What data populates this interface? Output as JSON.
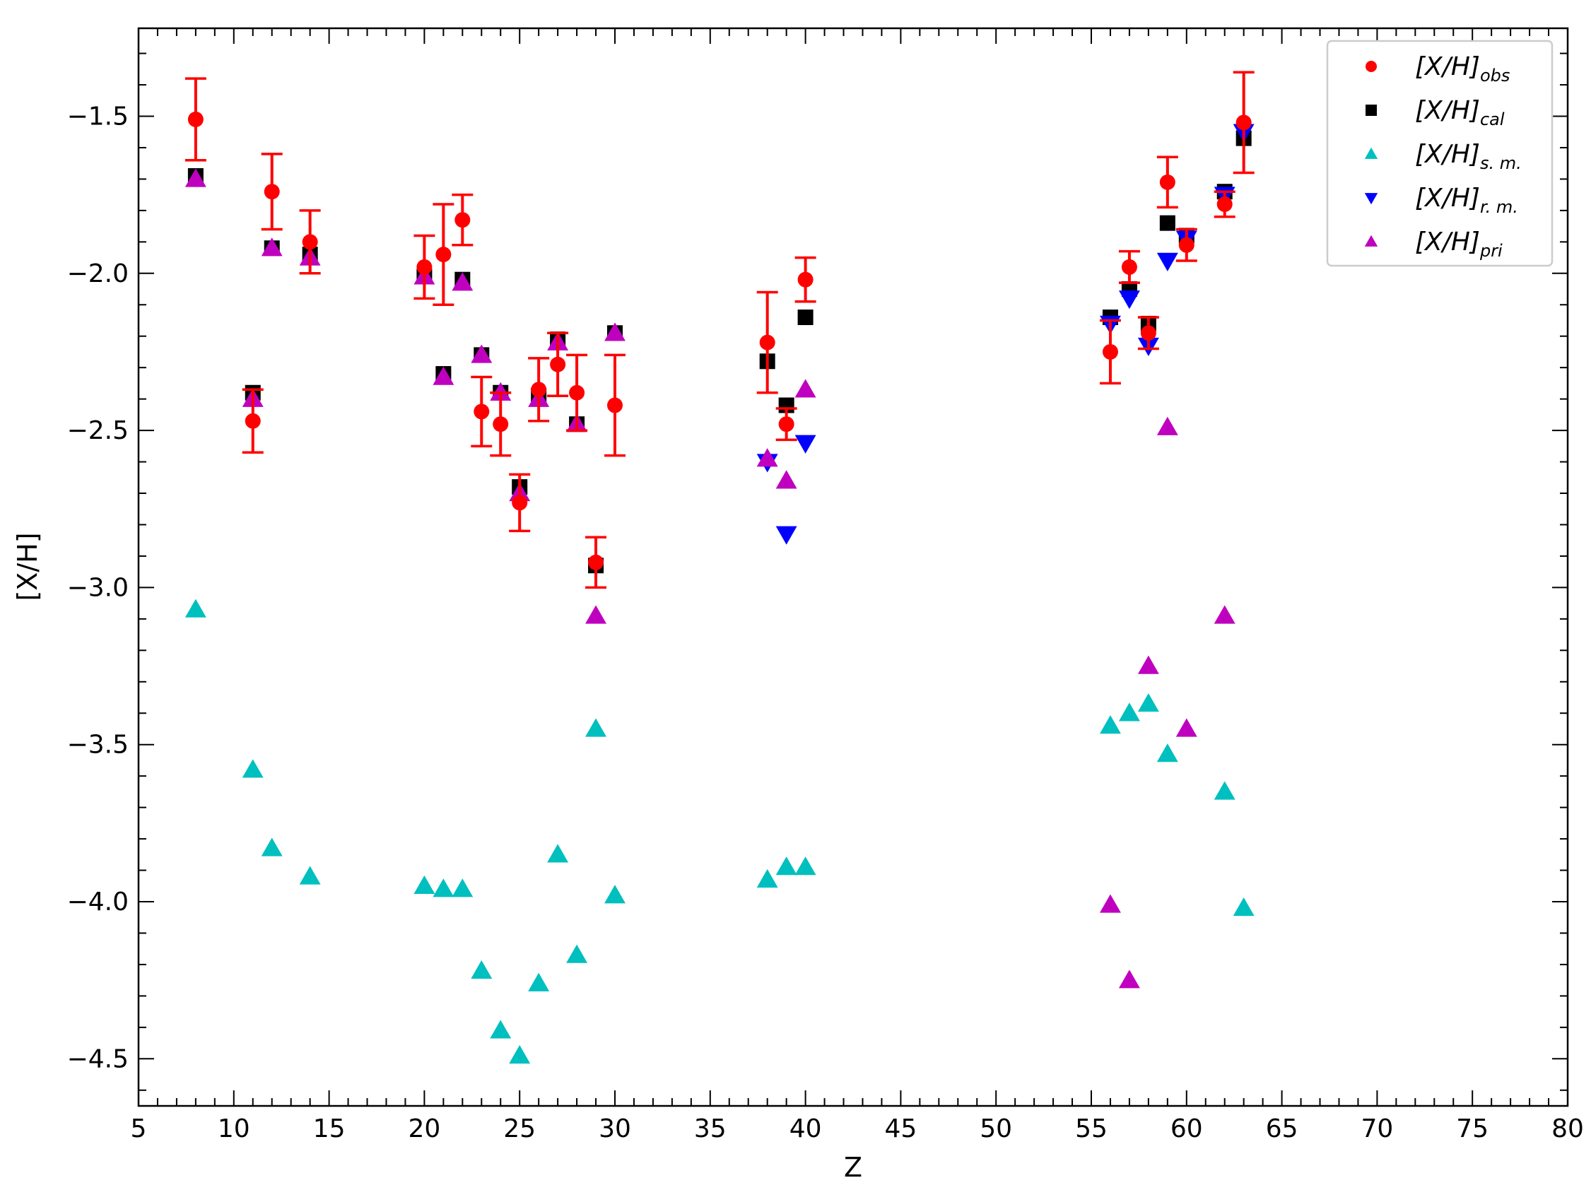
{
  "chart_data": {
    "type": "scatter",
    "title": "",
    "xlabel": "Z",
    "ylabel": "[X/H]",
    "xlim": [
      5,
      80
    ],
    "ylim": [
      -4.65,
      -1.22
    ],
    "xticks": [
      5,
      10,
      15,
      20,
      25,
      30,
      35,
      40,
      45,
      50,
      55,
      60,
      65,
      70,
      75,
      80
    ],
    "yticks": [
      -4.5,
      -4.0,
      -3.5,
      -3.0,
      -2.5,
      -2.0,
      -1.5
    ],
    "ytick_labels": [
      "−4.5",
      "−4.0",
      "−3.5",
      "−3.0",
      "−2.5",
      "−2.0",
      "−1.5"
    ],
    "grid": false,
    "legend_position": "top-right",
    "series": [
      {
        "name": "[X/H]",
        "sub": "obs",
        "marker": "circle",
        "color": "#ff0000",
        "points": [
          {
            "x": 8,
            "y": -1.51,
            "err": 0.13
          },
          {
            "x": 11,
            "y": -2.47,
            "err": 0.1
          },
          {
            "x": 12,
            "y": -1.74,
            "err": 0.12
          },
          {
            "x": 14,
            "y": -1.9,
            "err": 0.1
          },
          {
            "x": 20,
            "y": -1.98,
            "err": 0.1
          },
          {
            "x": 21,
            "y": -1.94,
            "err": 0.16
          },
          {
            "x": 22,
            "y": -1.83,
            "err": 0.08
          },
          {
            "x": 23,
            "y": -2.44,
            "err": 0.11
          },
          {
            "x": 24,
            "y": -2.48,
            "err": 0.1
          },
          {
            "x": 25,
            "y": -2.73,
            "err": 0.09
          },
          {
            "x": 26,
            "y": -2.37,
            "err": 0.1
          },
          {
            "x": 27,
            "y": -2.29,
            "err": 0.1
          },
          {
            "x": 28,
            "y": -2.38,
            "err": 0.12
          },
          {
            "x": 29,
            "y": -2.92,
            "err": 0.08
          },
          {
            "x": 30,
            "y": -2.42,
            "err": 0.16
          },
          {
            "x": 38,
            "y": -2.22,
            "err": 0.16
          },
          {
            "x": 39,
            "y": -2.48,
            "err": 0.05
          },
          {
            "x": 40,
            "y": -2.02,
            "err": 0.07
          },
          {
            "x": 56,
            "y": -2.25,
            "err": 0.1
          },
          {
            "x": 57,
            "y": -1.98,
            "err": 0.05
          },
          {
            "x": 58,
            "y": -2.19,
            "err": 0.05
          },
          {
            "x": 59,
            "y": -1.71,
            "err": 0.08
          },
          {
            "x": 60,
            "y": -1.91,
            "err": 0.05
          },
          {
            "x": 62,
            "y": -1.78,
            "err": 0.04
          },
          {
            "x": 63,
            "y": -1.52,
            "err": 0.16
          }
        ]
      },
      {
        "name": "[X/H]",
        "sub": "cal",
        "marker": "square",
        "color": "#000000",
        "points": [
          {
            "x": 8,
            "y": -1.69
          },
          {
            "x": 11,
            "y": -2.38
          },
          {
            "x": 12,
            "y": -1.92
          },
          {
            "x": 14,
            "y": -1.94
          },
          {
            "x": 20,
            "y": -2.01
          },
          {
            "x": 21,
            "y": -2.32
          },
          {
            "x": 22,
            "y": -2.02
          },
          {
            "x": 23,
            "y": -2.26
          },
          {
            "x": 24,
            "y": -2.38
          },
          {
            "x": 25,
            "y": -2.68
          },
          {
            "x": 26,
            "y": -2.39
          },
          {
            "x": 27,
            "y": -2.21
          },
          {
            "x": 28,
            "y": -2.48
          },
          {
            "x": 29,
            "y": -2.93
          },
          {
            "x": 30,
            "y": -2.19
          },
          {
            "x": 38,
            "y": -2.28
          },
          {
            "x": 39,
            "y": -2.42
          },
          {
            "x": 40,
            "y": -2.14
          },
          {
            "x": 56,
            "y": -2.14
          },
          {
            "x": 57,
            "y": -2.05
          },
          {
            "x": 58,
            "y": -2.16
          },
          {
            "x": 59,
            "y": -1.84
          },
          {
            "x": 60,
            "y": -1.88
          },
          {
            "x": 62,
            "y": -1.74
          },
          {
            "x": 63,
            "y": -1.57
          }
        ]
      },
      {
        "name": "[X/H]",
        "sub": "s. m.",
        "marker": "triangle-up",
        "color": "#00bfbf",
        "points": [
          {
            "x": 8,
            "y": -3.07
          },
          {
            "x": 11,
            "y": -3.58
          },
          {
            "x": 12,
            "y": -3.83
          },
          {
            "x": 14,
            "y": -3.92
          },
          {
            "x": 20,
            "y": -3.95
          },
          {
            "x": 21,
            "y": -3.96
          },
          {
            "x": 22,
            "y": -3.96
          },
          {
            "x": 23,
            "y": -4.22
          },
          {
            "x": 24,
            "y": -4.41
          },
          {
            "x": 25,
            "y": -4.49
          },
          {
            "x": 26,
            "y": -4.26
          },
          {
            "x": 27,
            "y": -3.85
          },
          {
            "x": 28,
            "y": -4.17
          },
          {
            "x": 29,
            "y": -3.45
          },
          {
            "x": 30,
            "y": -3.98
          },
          {
            "x": 38,
            "y": -3.93
          },
          {
            "x": 39,
            "y": -3.89
          },
          {
            "x": 40,
            "y": -3.89
          },
          {
            "x": 56,
            "y": -3.44
          },
          {
            "x": 57,
            "y": -3.4
          },
          {
            "x": 58,
            "y": -3.37
          },
          {
            "x": 59,
            "y": -3.53
          },
          {
            "x": 62,
            "y": -3.65
          },
          {
            "x": 63,
            "y": -4.02
          }
        ]
      },
      {
        "name": "[X/H]",
        "sub": "r. m.",
        "marker": "triangle-down",
        "color": "#0000ff",
        "points": [
          {
            "x": 38,
            "y": -2.6
          },
          {
            "x": 39,
            "y": -2.83
          },
          {
            "x": 40,
            "y": -2.54
          },
          {
            "x": 56,
            "y": -2.16
          },
          {
            "x": 57,
            "y": -2.08
          },
          {
            "x": 58,
            "y": -2.23
          },
          {
            "x": 59,
            "y": -1.96
          },
          {
            "x": 60,
            "y": -1.89
          },
          {
            "x": 62,
            "y": -1.75
          },
          {
            "x": 63,
            "y": -1.55
          }
        ]
      },
      {
        "name": "[X/H]",
        "sub": "pri",
        "marker": "triangle-up",
        "color": "#bf00bf",
        "points": [
          {
            "x": 8,
            "y": -1.7
          },
          {
            "x": 11,
            "y": -2.4
          },
          {
            "x": 12,
            "y": -1.92
          },
          {
            "x": 14,
            "y": -1.95
          },
          {
            "x": 20,
            "y": -2.01
          },
          {
            "x": 21,
            "y": -2.33
          },
          {
            "x": 22,
            "y": -2.03
          },
          {
            "x": 23,
            "y": -2.26
          },
          {
            "x": 24,
            "y": -2.38
          },
          {
            "x": 25,
            "y": -2.7
          },
          {
            "x": 26,
            "y": -2.4
          },
          {
            "x": 27,
            "y": -2.22
          },
          {
            "x": 28,
            "y": -2.48
          },
          {
            "x": 29,
            "y": -3.09
          },
          {
            "x": 30,
            "y": -2.19
          },
          {
            "x": 38,
            "y": -2.59
          },
          {
            "x": 39,
            "y": -2.66
          },
          {
            "x": 40,
            "y": -2.37
          },
          {
            "x": 56,
            "y": -4.01
          },
          {
            "x": 57,
            "y": -4.25
          },
          {
            "x": 58,
            "y": -3.25
          },
          {
            "x": 59,
            "y": -2.49
          },
          {
            "x": 60,
            "y": -3.45
          },
          {
            "x": 62,
            "y": -3.09
          }
        ]
      }
    ]
  }
}
